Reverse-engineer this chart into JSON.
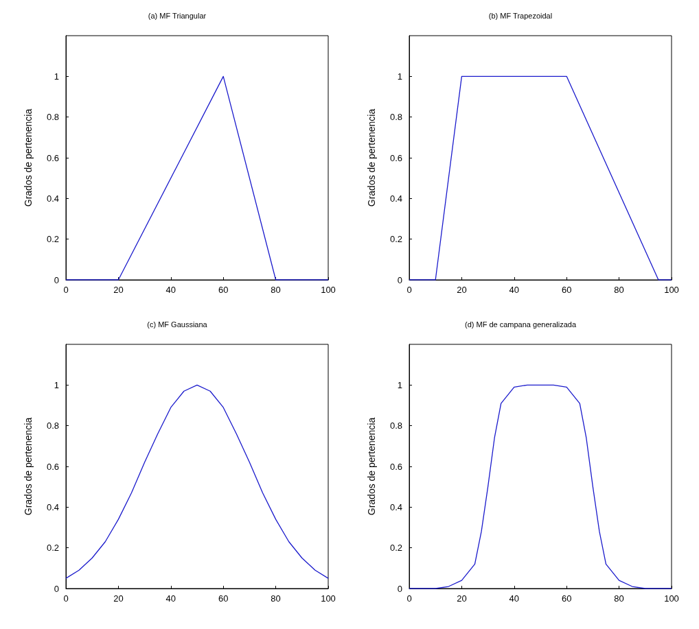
{
  "chart_data": [
    {
      "type": "line",
      "title": "(a) MF Triangular",
      "ylabel": "Grados de pertenencia",
      "x": [
        0,
        20,
        60,
        80,
        100
      ],
      "values": [
        0,
        0,
        1,
        0,
        0
      ],
      "color": "#1a1acc",
      "xlim": [
        0,
        100
      ],
      "ylim": [
        0,
        1.2
      ],
      "xticks": [
        0,
        20,
        40,
        60,
        80,
        100
      ],
      "yticks": [
        0,
        0.2,
        0.4,
        0.6,
        0.8,
        1
      ]
    },
    {
      "type": "line",
      "title": "(b) MF Trapezoidal",
      "ylabel": "Grados de pertenencia",
      "x": [
        0,
        10,
        20,
        60,
        95,
        100
      ],
      "values": [
        0,
        0,
        1,
        1,
        0,
        0
      ],
      "color": "#1a1acc",
      "xlim": [
        0,
        100
      ],
      "ylim": [
        0,
        1.2
      ],
      "xticks": [
        0,
        20,
        40,
        60,
        80,
        100
      ],
      "yticks": [
        0,
        0.2,
        0.4,
        0.6,
        0.8,
        1
      ]
    },
    {
      "type": "line",
      "title": "(c) MF Gaussiana",
      "ylabel": "Grados de pertenencia",
      "x": [
        0,
        5,
        10,
        15,
        20,
        25,
        30,
        35,
        40,
        45,
        50,
        55,
        60,
        65,
        70,
        75,
        80,
        85,
        90,
        95,
        100
      ],
      "values": [
        0.05,
        0.09,
        0.15,
        0.23,
        0.34,
        0.47,
        0.62,
        0.76,
        0.89,
        0.97,
        1,
        0.97,
        0.89,
        0.76,
        0.62,
        0.47,
        0.34,
        0.23,
        0.15,
        0.09,
        0.05
      ],
      "color": "#1a1acc",
      "xlim": [
        0,
        100
      ],
      "ylim": [
        0,
        1.2
      ],
      "xticks": [
        0,
        20,
        40,
        60,
        80,
        100
      ],
      "yticks": [
        0,
        0.2,
        0.4,
        0.6,
        0.8,
        1
      ]
    },
    {
      "type": "line",
      "title": "(d) MF de campana generalizada",
      "ylabel": "Grados de pertenencia",
      "x": [
        0,
        10,
        15,
        20,
        25,
        27.5,
        30,
        32.5,
        35,
        40,
        45,
        50,
        55,
        60,
        65,
        67.5,
        70,
        72.5,
        75,
        80,
        85,
        90,
        100
      ],
      "values": [
        0,
        0,
        0.01,
        0.04,
        0.12,
        0.28,
        0.5,
        0.74,
        0.91,
        0.99,
        1,
        1,
        1,
        0.99,
        0.91,
        0.74,
        0.5,
        0.28,
        0.12,
        0.04,
        0.01,
        0,
        0
      ],
      "color": "#1a1acc",
      "xlim": [
        0,
        100
      ],
      "ylim": [
        0,
        1.2
      ],
      "xticks": [
        0,
        20,
        40,
        60,
        80,
        100
      ],
      "yticks": [
        0,
        0.2,
        0.4,
        0.6,
        0.8,
        1
      ]
    }
  ]
}
